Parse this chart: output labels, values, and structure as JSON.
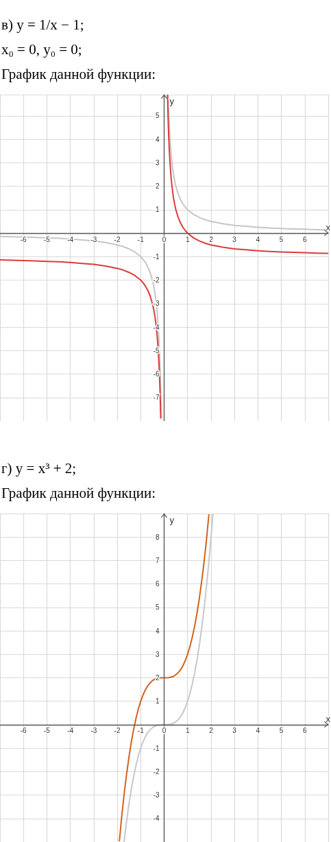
{
  "chart_data": [
    {
      "type": "line",
      "title": "в) y = 1/x − 1;",
      "subtitle": "x₀ = 0,  y₀ = 0;",
      "annotations": [
        "График данной функции:"
      ],
      "xlabel": "x",
      "ylabel": "y",
      "xlim": [
        -7,
        7
      ],
      "ylim": [
        -8,
        5.9
      ],
      "xticks": [
        -6,
        -5,
        -4,
        -3,
        -2,
        -1,
        0,
        1,
        2,
        3,
        4,
        5,
        6
      ],
      "yticks": [
        -7,
        -6,
        -5,
        -4,
        -3,
        -2,
        -1,
        1,
        2,
        3,
        4,
        5
      ],
      "grid": true,
      "series": [
        {
          "color": "#c6c6c6",
          "x": [
            -7,
            -6.5,
            -6,
            -5.5,
            -5,
            -4.5,
            -4,
            -3.5,
            -3,
            -2.5,
            -2,
            -1.75,
            -1.5,
            -1.25,
            -1,
            -0.9,
            -0.8,
            -0.7,
            -0.6,
            -0.5,
            -0.45,
            -0.4,
            -0.35,
            -0.3,
            -0.25,
            -0.22,
            -0.2,
            -0.18,
            -0.16,
            -0.14,
            -0.127,
            0,
            0.17,
            0.18,
            0.2,
            0.22,
            0.25,
            0.3,
            0.35,
            0.4,
            0.45,
            0.5,
            0.6,
            0.7,
            0.8,
            0.9,
            1,
            1.25,
            1.5,
            1.75,
            2,
            2.5,
            3,
            3.5,
            4,
            4.5,
            5,
            5.5,
            6,
            6.5,
            7
          ],
          "values": [
            -0.14,
            -0.15,
            -0.17,
            -0.18,
            -0.2,
            -0.22,
            -0.25,
            -0.29,
            -0.33,
            -0.4,
            -0.5,
            -0.57,
            -0.67,
            -0.8,
            -1,
            -1.11,
            -1.25,
            -1.43,
            -1.67,
            -2,
            -2.22,
            -2.5,
            -2.86,
            -3.33,
            -4,
            -4.55,
            -5,
            -5.56,
            -6.25,
            -7.14,
            -7.87,
            null,
            5.88,
            5.56,
            5,
            4.55,
            4,
            3.33,
            2.86,
            2.5,
            2.22,
            2,
            1.67,
            1.43,
            1.25,
            1.11,
            1,
            0.8,
            0.67,
            0.57,
            0.5,
            0.4,
            0.33,
            0.29,
            0.25,
            0.22,
            0.2,
            0.18,
            0.17,
            0.15,
            0.14
          ]
        },
        {
          "color": "#dc3b3b",
          "x": [
            -7,
            -6.5,
            -6,
            -5.5,
            -5,
            -4.5,
            -4,
            -3.5,
            -3,
            -2.5,
            -2,
            -1.75,
            -1.5,
            -1.25,
            -1,
            -0.9,
            -0.8,
            -0.7,
            -0.6,
            -0.5,
            -0.45,
            -0.4,
            -0.35,
            -0.3,
            -0.25,
            -0.22,
            -0.2,
            -0.18,
            -0.16,
            -0.145,
            0,
            0.145,
            0.15,
            0.16,
            0.18,
            0.2,
            0.22,
            0.25,
            0.3,
            0.35,
            0.4,
            0.45,
            0.5,
            0.6,
            0.7,
            0.8,
            0.9,
            1,
            1.25,
            1.5,
            1.75,
            2,
            2.5,
            3,
            3.5,
            4,
            4.5,
            5,
            5.5,
            6,
            6.5,
            7
          ],
          "values": [
            -1.14,
            -1.15,
            -1.17,
            -1.18,
            -1.2,
            -1.22,
            -1.25,
            -1.29,
            -1.33,
            -1.4,
            -1.5,
            -1.57,
            -1.67,
            -1.8,
            -2,
            -2.11,
            -2.25,
            -2.43,
            -2.67,
            -3,
            -3.22,
            -3.5,
            -3.86,
            -4.33,
            -5,
            -5.55,
            -6,
            -6.56,
            -7.25,
            -7.9,
            null,
            5.9,
            5.67,
            5.25,
            4.56,
            4,
            3.55,
            3,
            2.33,
            1.86,
            1.5,
            1.22,
            1,
            0.67,
            0.43,
            0.25,
            0.11,
            0,
            -0.2,
            -0.33,
            -0.43,
            -0.5,
            -0.6,
            -0.67,
            -0.71,
            -0.75,
            -0.78,
            -0.8,
            -0.82,
            -0.83,
            -0.85,
            -0.86
          ]
        }
      ]
    },
    {
      "type": "line",
      "title": "г) y = x³ + 2;",
      "annotations": [
        "График данной функции:"
      ],
      "xlabel": "x",
      "ylabel": "y",
      "xlim": [
        -7,
        7
      ],
      "ylim": [
        -5,
        9
      ],
      "xticks": [
        -6,
        -5,
        -4,
        -3,
        -2,
        -1,
        0,
        1,
        2,
        3,
        4,
        5,
        6
      ],
      "yticks": [
        -4,
        -3,
        -2,
        -1,
        1,
        2,
        3,
        4,
        5,
        6,
        7,
        8
      ],
      "grid": true,
      "series": [
        {
          "color": "#c8c8c8",
          "x": [
            -1.71,
            -1.6,
            -1.5,
            -1.4,
            -1.3,
            -1.2,
            -1.1,
            -1,
            -0.9,
            -0.8,
            -0.7,
            -0.6,
            -0.5,
            -0.4,
            -0.3,
            -0.2,
            0,
            0.2,
            0.3,
            0.4,
            0.5,
            0.6,
            0.7,
            0.8,
            0.9,
            1,
            1.1,
            1.2,
            1.3,
            1.4,
            1.5,
            1.6,
            1.7,
            1.8,
            1.9,
            2,
            2.08
          ],
          "values": [
            -5,
            -4.1,
            -3.38,
            -2.74,
            -2.2,
            -1.73,
            -1.33,
            -1,
            -0.73,
            -0.51,
            -0.34,
            -0.22,
            -0.13,
            -0.06,
            -0.03,
            -0.01,
            0,
            0.01,
            0.03,
            0.06,
            0.13,
            0.22,
            0.34,
            0.51,
            0.73,
            1,
            1.33,
            1.73,
            2.2,
            2.74,
            3.38,
            4.1,
            4.91,
            5.83,
            6.86,
            8,
            9
          ]
        },
        {
          "color": "#d2621c",
          "x": [
            -1.91,
            -1.8,
            -1.7,
            -1.6,
            -1.5,
            -1.4,
            -1.3,
            -1.2,
            -1.1,
            -1,
            -0.9,
            -0.8,
            -0.7,
            -0.6,
            -0.5,
            -0.4,
            -0.3,
            -0.2,
            -0.1,
            0,
            0.1,
            0.2,
            0.3,
            0.4,
            0.5,
            0.6,
            0.7,
            0.8,
            0.9,
            1,
            1.1,
            1.2,
            1.3,
            1.4,
            1.5,
            1.6,
            1.7,
            1.8,
            1.91
          ],
          "values": [
            -4.97,
            -3.83,
            -2.91,
            -2.1,
            -1.38,
            -0.74,
            -0.2,
            0.27,
            0.67,
            1,
            1.27,
            1.49,
            1.66,
            1.78,
            1.88,
            1.94,
            1.97,
            1.99,
            2,
            2,
            2,
            2.01,
            2.03,
            2.06,
            2.13,
            2.22,
            2.34,
            2.51,
            2.73,
            3,
            3.33,
            3.73,
            4.2,
            4.74,
            5.38,
            6.1,
            6.91,
            7.83,
            8.97
          ]
        }
      ]
    }
  ]
}
